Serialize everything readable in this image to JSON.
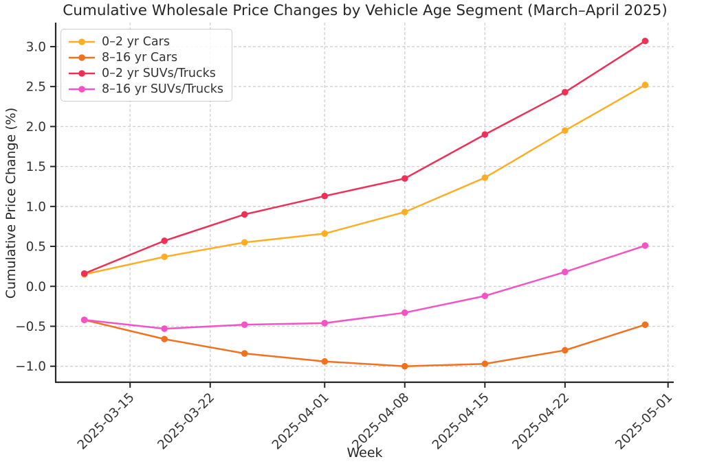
{
  "chart_data": {
    "type": "line",
    "title": "Cumulative Wholesale Price Changes by Vehicle Age Segment (March–April 2025)",
    "xlabel": "Week",
    "ylabel": "Cumulative Price Change (%)",
    "x": [
      "2025-03-11",
      "2025-03-18",
      "2025-03-25",
      "2025-04-01",
      "2025-04-08",
      "2025-04-15",
      "2025-04-22",
      "2025-04-29"
    ],
    "series": [
      {
        "name": "0–2 yr Cars",
        "color": "#FFAD24",
        "values": [
          0.15,
          0.37,
          0.55,
          0.66,
          0.93,
          1.36,
          1.95,
          2.52
        ]
      },
      {
        "name": "8–16 yr Cars",
        "color": "#F2701E",
        "values": [
          -0.42,
          -0.66,
          -0.84,
          -0.94,
          -1.0,
          -0.97,
          -0.8,
          -0.48
        ]
      },
      {
        "name": "0–2 yr SUVs/Trucks",
        "color": "#EE3057",
        "values": [
          0.16,
          0.57,
          0.9,
          1.13,
          1.35,
          1.9,
          2.43,
          3.07
        ]
      },
      {
        "name": "8–16 yr SUVs/Trucks",
        "color": "#F452C5",
        "values": [
          -0.42,
          -0.53,
          -0.48,
          -0.46,
          -0.33,
          -0.12,
          0.18,
          0.51
        ]
      }
    ],
    "x_ticks": [
      "2025-03-15",
      "2025-03-22",
      "2025-04-01",
      "2025-04-08",
      "2025-04-15",
      "2025-04-22",
      "2025-05-01"
    ],
    "y_ticks": [
      -1.0,
      -0.5,
      0.0,
      0.5,
      1.0,
      1.5,
      2.0,
      2.5,
      3.0
    ],
    "ylim": [
      -1.2,
      3.3
    ],
    "x_margin_days": 2.5,
    "grid": true,
    "legend_position": "upper-left",
    "colors": {
      "background": "#ffffff",
      "grid": "#cfcfcf",
      "axis": "#262626",
      "tick_text": "#333333",
      "title_text": "#262626"
    }
  }
}
